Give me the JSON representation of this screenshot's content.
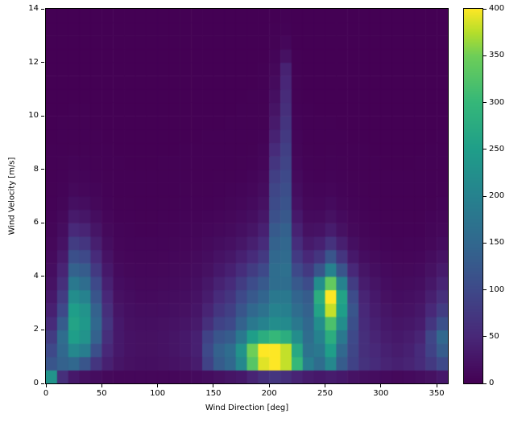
{
  "figure": {
    "background": "#ffffff",
    "plot_border_color": "#000000"
  },
  "chart_data": {
    "type": "heatmap",
    "title": "",
    "xlabel": "Wind Direction [deg]",
    "ylabel": "Wind Velocity [m/s]",
    "x_range": [
      0,
      360
    ],
    "y_range": [
      0,
      14
    ],
    "x_bin_size": 10,
    "y_bin_size": 0.5,
    "vmin": 0,
    "vmax": 400,
    "colormap": "viridis",
    "colormap_anchors": [
      [
        0.0,
        "#440154"
      ],
      [
        0.125,
        "#482878"
      ],
      [
        0.25,
        "#3e4989"
      ],
      [
        0.375,
        "#31688e"
      ],
      [
        0.5,
        "#26828e"
      ],
      [
        0.625,
        "#1f9e89"
      ],
      [
        0.75,
        "#35b779"
      ],
      [
        0.875,
        "#6ece58"
      ],
      [
        0.9375,
        "#b5de2b"
      ],
      [
        1.0,
        "#fde725"
      ]
    ],
    "x_ticks": [
      0,
      50,
      100,
      150,
      200,
      250,
      300,
      350
    ],
    "x_tick_labels": [
      "0",
      "50",
      "100",
      "150",
      "200",
      "250",
      "300",
      "350"
    ],
    "y_ticks": [
      0,
      2,
      4,
      6,
      8,
      10,
      12,
      14
    ],
    "y_tick_labels": [
      "0",
      "2",
      "4",
      "6",
      "8",
      "10",
      "12",
      "14"
    ],
    "colorbar_ticks": [
      0,
      50,
      100,
      150,
      200,
      250,
      300,
      350,
      400
    ],
    "colorbar_tick_labels": [
      "0",
      "50",
      "100",
      "150",
      "200",
      "250",
      "300",
      "350",
      "400"
    ],
    "values_row_order": "bottom-to-top",
    "values": [
      [
        230,
        60,
        30,
        20,
        15,
        10,
        8,
        8,
        8,
        8,
        8,
        8,
        10,
        12,
        15,
        20,
        25,
        30,
        45,
        60,
        70,
        60,
        45,
        35,
        30,
        35,
        30,
        22,
        18,
        15,
        12,
        10,
        12,
        15,
        20,
        30
      ],
      [
        120,
        140,
        150,
        120,
        70,
        40,
        25,
        20,
        18,
        18,
        20,
        22,
        25,
        35,
        90,
        130,
        150,
        210,
        330,
        390,
        400,
        380,
        300,
        190,
        160,
        210,
        130,
        90,
        65,
        55,
        45,
        40,
        45,
        55,
        75,
        100
      ],
      [
        100,
        150,
        210,
        190,
        110,
        50,
        30,
        22,
        20,
        20,
        22,
        25,
        30,
        40,
        100,
        140,
        160,
        230,
        350,
        400,
        400,
        380,
        270,
        170,
        180,
        250,
        150,
        95,
        60,
        50,
        40,
        35,
        40,
        55,
        90,
        130
      ],
      [
        80,
        160,
        250,
        230,
        140,
        60,
        30,
        22,
        20,
        20,
        22,
        25,
        30,
        40,
        90,
        120,
        130,
        180,
        250,
        280,
        300,
        280,
        220,
        160,
        200,
        280,
        180,
        100,
        60,
        45,
        35,
        30,
        35,
        45,
        95,
        150
      ],
      [
        55,
        130,
        260,
        240,
        150,
        70,
        30,
        20,
        18,
        18,
        20,
        22,
        25,
        32,
        60,
        90,
        100,
        140,
        180,
        200,
        220,
        215,
        180,
        150,
        220,
        320,
        220,
        110,
        55,
        40,
        30,
        25,
        28,
        35,
        70,
        110
      ],
      [
        40,
        100,
        250,
        230,
        140,
        60,
        25,
        18,
        15,
        15,
        16,
        18,
        20,
        26,
        45,
        70,
        85,
        120,
        150,
        170,
        200,
        195,
        160,
        140,
        260,
        380,
        250,
        120,
        50,
        35,
        25,
        20,
        22,
        28,
        50,
        80
      ],
      [
        30,
        80,
        220,
        200,
        120,
        50,
        20,
        15,
        12,
        12,
        14,
        15,
        17,
        22,
        35,
        55,
        70,
        100,
        125,
        145,
        180,
        180,
        145,
        130,
        280,
        400,
        260,
        105,
        45,
        30,
        20,
        16,
        18,
        22,
        38,
        60
      ],
      [
        22,
        60,
        180,
        160,
        100,
        40,
        16,
        12,
        10,
        10,
        11,
        12,
        14,
        18,
        28,
        42,
        55,
        80,
        105,
        125,
        160,
        160,
        125,
        105,
        220,
        340,
        200,
        80,
        35,
        24,
        16,
        13,
        14,
        17,
        28,
        45
      ],
      [
        16,
        45,
        140,
        130,
        75,
        30,
        12,
        9,
        8,
        8,
        9,
        10,
        11,
        14,
        20,
        30,
        40,
        58,
        80,
        100,
        160,
        165,
        100,
        75,
        120,
        200,
        120,
        50,
        25,
        17,
        12,
        10,
        10,
        12,
        20,
        32
      ],
      [
        12,
        32,
        110,
        100,
        55,
        22,
        9,
        7,
        6,
        6,
        7,
        8,
        9,
        11,
        15,
        22,
        28,
        40,
        55,
        75,
        150,
        155,
        78,
        50,
        70,
        120,
        70,
        30,
        16,
        11,
        8,
        7,
        7,
        8,
        14,
        22
      ],
      [
        9,
        22,
        80,
        70,
        38,
        15,
        7,
        5,
        5,
        5,
        5,
        6,
        7,
        8,
        11,
        15,
        19,
        27,
        38,
        55,
        140,
        148,
        58,
        32,
        40,
        65,
        38,
        18,
        10,
        7,
        5,
        4,
        5,
        5,
        9,
        14
      ],
      [
        6,
        15,
        52,
        45,
        25,
        10,
        5,
        4,
        3,
        3,
        4,
        4,
        5,
        6,
        8,
        10,
        13,
        18,
        25,
        40,
        128,
        138,
        42,
        20,
        22,
        35,
        20,
        10,
        6,
        4,
        3,
        3,
        3,
        3,
        6,
        9
      ],
      [
        4,
        10,
        32,
        27,
        15,
        7,
        3,
        3,
        2,
        2,
        3,
        3,
        4,
        4,
        5,
        7,
        9,
        12,
        17,
        28,
        112,
        124,
        30,
        13,
        13,
        20,
        12,
        7,
        4,
        3,
        2,
        2,
        2,
        2,
        4,
        6
      ],
      [
        3,
        6,
        18,
        15,
        9,
        4,
        2,
        2,
        1,
        1,
        2,
        2,
        3,
        3,
        3,
        4,
        6,
        8,
        12,
        20,
        104,
        116,
        21,
        9,
        8,
        12,
        7,
        4,
        3,
        2,
        1,
        1,
        1,
        1,
        2,
        4
      ],
      [
        2,
        4,
        10,
        8,
        5,
        3,
        1,
        1,
        1,
        1,
        1,
        1,
        2,
        2,
        2,
        3,
        4,
        5,
        8,
        14,
        95,
        108,
        15,
        6,
        5,
        7,
        4,
        3,
        2,
        1,
        1,
        1,
        1,
        1,
        1,
        2
      ],
      [
        1,
        3,
        6,
        5,
        3,
        2,
        1,
        1,
        1,
        1,
        1,
        1,
        1,
        1,
        1,
        2,
        2,
        3,
        5,
        10,
        85,
        100,
        11,
        4,
        3,
        4,
        3,
        2,
        1,
        1,
        1,
        1,
        1,
        1,
        1,
        1
      ],
      [
        1,
        2,
        4,
        3,
        2,
        1,
        1,
        0,
        0,
        0,
        1,
        1,
        1,
        1,
        1,
        1,
        1,
        2,
        3,
        7,
        70,
        92,
        8,
        3,
        2,
        3,
        2,
        1,
        1,
        1,
        0,
        0,
        0,
        1,
        1,
        1
      ],
      [
        1,
        1,
        2,
        2,
        1,
        1,
        0,
        0,
        0,
        0,
        0,
        0,
        1,
        1,
        1,
        1,
        1,
        1,
        2,
        5,
        55,
        85,
        6,
        2,
        1,
        2,
        1,
        1,
        1,
        0,
        0,
        0,
        0,
        0,
        1,
        1
      ],
      [
        0,
        1,
        1,
        1,
        1,
        0,
        0,
        0,
        0,
        0,
        0,
        0,
        0,
        0,
        1,
        1,
        1,
        1,
        1,
        3,
        42,
        76,
        5,
        1,
        1,
        1,
        1,
        0,
        0,
        0,
        0,
        0,
        0,
        0,
        0,
        1
      ],
      [
        0,
        1,
        1,
        1,
        0,
        0,
        0,
        0,
        0,
        0,
        0,
        0,
        0,
        0,
        0,
        0,
        1,
        1,
        1,
        2,
        32,
        68,
        4,
        1,
        1,
        1,
        0,
        0,
        0,
        0,
        0,
        0,
        0,
        0,
        0,
        0
      ],
      [
        0,
        0,
        1,
        1,
        0,
        0,
        0,
        0,
        0,
        0,
        0,
        0,
        0,
        0,
        0,
        0,
        0,
        1,
        1,
        2,
        24,
        60,
        3,
        1,
        0,
        0,
        0,
        0,
        0,
        0,
        0,
        0,
        0,
        0,
        0,
        0
      ],
      [
        0,
        0,
        0,
        0,
        0,
        0,
        0,
        0,
        0,
        0,
        0,
        0,
        0,
        0,
        0,
        0,
        0,
        0,
        1,
        1,
        18,
        54,
        2,
        0,
        0,
        0,
        0,
        0,
        0,
        0,
        0,
        0,
        0,
        0,
        0,
        0
      ],
      [
        0,
        0,
        0,
        0,
        0,
        0,
        0,
        0,
        0,
        0,
        0,
        0,
        0,
        0,
        0,
        0,
        0,
        0,
        0,
        1,
        13,
        48,
        2,
        0,
        0,
        0,
        0,
        0,
        0,
        0,
        0,
        0,
        0,
        0,
        0,
        0
      ],
      [
        0,
        0,
        0,
        0,
        0,
        0,
        0,
        0,
        0,
        0,
        0,
        0,
        0,
        0,
        0,
        0,
        0,
        0,
        0,
        1,
        9,
        42,
        1,
        0,
        0,
        0,
        0,
        0,
        0,
        0,
        0,
        0,
        0,
        0,
        0,
        0
      ],
      [
        0,
        0,
        0,
        0,
        0,
        0,
        0,
        0,
        0,
        0,
        0,
        0,
        0,
        0,
        0,
        0,
        0,
        0,
        0,
        0,
        5,
        20,
        1,
        0,
        0,
        0,
        0,
        0,
        0,
        0,
        0,
        0,
        0,
        0,
        0,
        0
      ],
      [
        0,
        0,
        0,
        0,
        0,
        0,
        0,
        0,
        0,
        0,
        0,
        0,
        0,
        0,
        0,
        0,
        0,
        0,
        0,
        0,
        2,
        8,
        0,
        0,
        0,
        0,
        0,
        0,
        0,
        0,
        0,
        0,
        0,
        0,
        0,
        0
      ],
      [
        0,
        0,
        0,
        0,
        0,
        0,
        0,
        0,
        0,
        0,
        0,
        0,
        0,
        0,
        0,
        0,
        0,
        0,
        0,
        0,
        1,
        3,
        0,
        0,
        0,
        0,
        0,
        0,
        0,
        0,
        0,
        0,
        0,
        0,
        0,
        0
      ],
      [
        0,
        0,
        0,
        0,
        0,
        0,
        0,
        0,
        0,
        0,
        0,
        0,
        0,
        0,
        0,
        0,
        0,
        0,
        0,
        0,
        0,
        1,
        0,
        0,
        0,
        0,
        0,
        0,
        0,
        0,
        0,
        0,
        0,
        0,
        0,
        0
      ]
    ]
  }
}
